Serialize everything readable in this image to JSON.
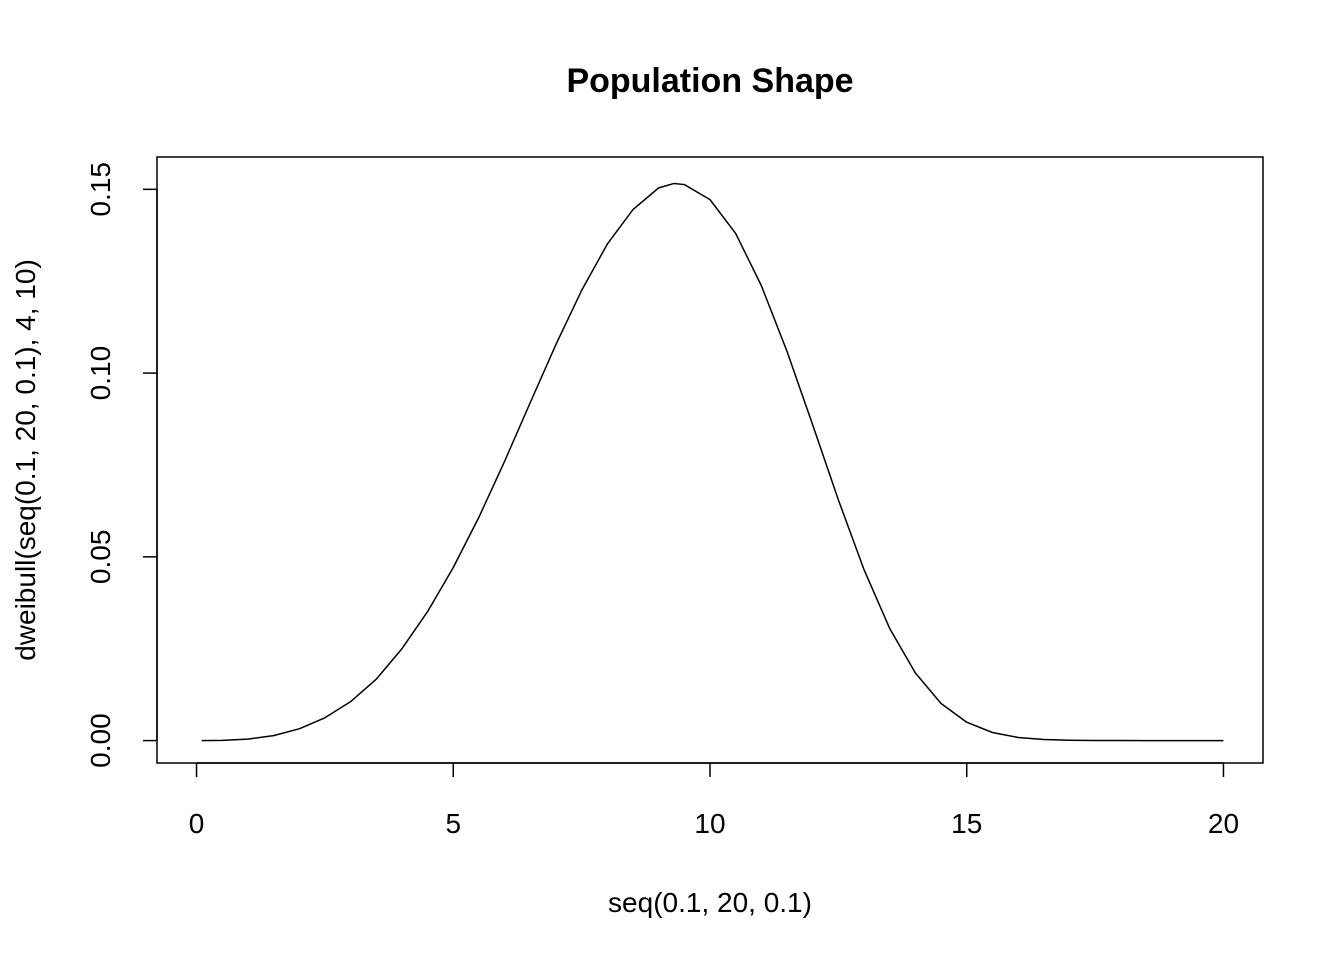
{
  "chart_data": {
    "type": "line",
    "title": "Population Shape",
    "xlabel": "seq(0.1, 20, 0.1)",
    "ylabel": "dweibull(seq(0.1, 20, 0.1), 4, 10)",
    "xlim": [
      -0.77,
      20.77
    ],
    "ylim": [
      -0.0061,
      0.1588
    ],
    "xticks": [
      0,
      5,
      10,
      15,
      20
    ],
    "xtick_labels": [
      "0",
      "5",
      "10",
      "15",
      "20"
    ],
    "yticks": [
      0,
      0.05,
      0.1,
      0.15
    ],
    "ytick_labels": [
      "0.00",
      "0.05",
      "0.10",
      "0.15"
    ],
    "grid": false,
    "series": [
      {
        "color": "#000000",
        "x": [
          0.1,
          0.5,
          1,
          1.5,
          2,
          2.5,
          3,
          3.5,
          4,
          4.5,
          5,
          5.5,
          6,
          6.5,
          7,
          7.5,
          8,
          8.5,
          9,
          9.3,
          9.5,
          10,
          10.5,
          11,
          11.5,
          12,
          12.5,
          13,
          13.5,
          14,
          14.5,
          15,
          15.5,
          16,
          16.5,
          17,
          17.5,
          18,
          18.5,
          19,
          19.5,
          20
        ],
        "y": [
          4e-07,
          5e-05,
          0.0004,
          0.00135,
          0.0032,
          0.0062,
          0.0106,
          0.0167,
          0.025,
          0.0351,
          0.0471,
          0.0608,
          0.076,
          0.092,
          0.1078,
          0.1225,
          0.1351,
          0.1445,
          0.1504,
          0.1516,
          0.1513,
          0.1472,
          0.138,
          0.1238,
          0.1059,
          0.0859,
          0.0655,
          0.0465,
          0.0305,
          0.0184,
          0.0101,
          0.005,
          0.0022,
          0.00085,
          0.00029,
          9e-05,
          2e-05,
          5e-06,
          1e-06,
          2e-07,
          3e-08,
          0.0
        ]
      }
    ]
  }
}
